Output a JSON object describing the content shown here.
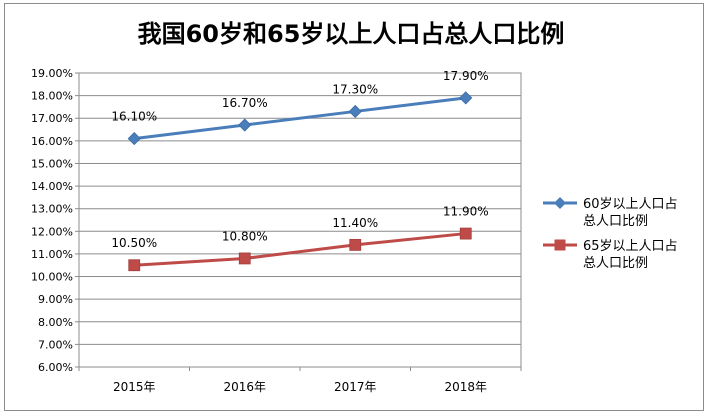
{
  "chart_data": {
    "type": "line",
    "title": "我国60岁和65岁以上人口占总人口比例",
    "categories": [
      "2015年",
      "2016年",
      "2017年",
      "2018年"
    ],
    "series": [
      {
        "name": "60岁以上人口占总人口比例",
        "legend_lines": [
          "60岁以上人口占",
          "总人口比例"
        ],
        "values": [
          16.1,
          16.7,
          17.3,
          17.9
        ],
        "labels": [
          "16.10%",
          "16.70%",
          "17.30%",
          "17.90%"
        ],
        "color": "#4a7ebb",
        "marker": "diamond"
      },
      {
        "name": "65岁以上人口占总人口比例",
        "legend_lines": [
          "65岁以上人口占",
          "总人口比例"
        ],
        "values": [
          10.5,
          10.8,
          11.4,
          11.9
        ],
        "labels": [
          "10.50%",
          "10.80%",
          "11.40%",
          "11.90%"
        ],
        "color": "#be4b48",
        "marker": "square"
      }
    ],
    "ylim": [
      6,
      19
    ],
    "yticks": [
      "6.00%",
      "7.00%",
      "8.00%",
      "9.00%",
      "10.00%",
      "11.00%",
      "12.00%",
      "13.00%",
      "14.00%",
      "15.00%",
      "16.00%",
      "17.00%",
      "18.00%",
      "19.00%"
    ],
    "ystep": 1,
    "grid": true,
    "legend_position": "right"
  }
}
